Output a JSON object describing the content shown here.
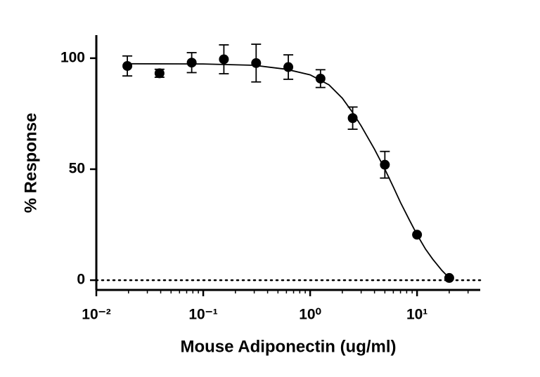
{
  "chart_data": {
    "type": "scatter",
    "x_label": "Mouse Adiponectin (ug/ml)",
    "y_label": "% Response",
    "x": [
      0.0195,
      0.039,
      0.078,
      0.156,
      0.3125,
      0.625,
      1.25,
      2.5,
      5,
      10,
      20
    ],
    "values": [
      96.5,
      93.2,
      98,
      99.5,
      97.8,
      96,
      90.8,
      73,
      52,
      20.5,
      1
    ],
    "errors": [
      4.5,
      1.8,
      4.5,
      6.5,
      8.5,
      5.5,
      4,
      5,
      6,
      0,
      0
    ],
    "curve": {
      "x": [
        0.0195,
        0.1,
        0.3,
        0.6,
        1,
        1.5,
        2,
        2.5,
        3,
        4,
        5,
        6,
        7,
        8.5,
        10,
        12,
        14,
        17,
        20
      ],
      "values": [
        97.5,
        97.4,
        96.8,
        95,
        92.5,
        88,
        82,
        75.5,
        69.5,
        59,
        50,
        42,
        35,
        27,
        20.5,
        14,
        9.5,
        4.5,
        1
      ]
    },
    "reference_line": 0,
    "color": "#000000",
    "x_log": true,
    "xlim": [
      0.01,
      39
    ],
    "ylim": [
      -4.4,
      110.4
    ],
    "xticks": [
      {
        "value": 0.01,
        "label": "10⁻²"
      },
      {
        "value": 0.1,
        "label": "10⁻¹"
      },
      {
        "value": 1,
        "label": "10⁰"
      },
      {
        "value": 10,
        "label": "10¹"
      }
    ],
    "yticks": [
      0,
      50,
      100
    ]
  }
}
